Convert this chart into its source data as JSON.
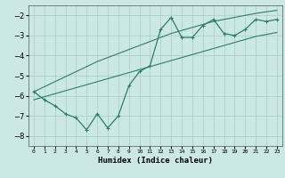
{
  "x": [
    0,
    1,
    2,
    3,
    4,
    5,
    6,
    7,
    8,
    9,
    10,
    11,
    12,
    13,
    14,
    15,
    16,
    17,
    18,
    19,
    20,
    21,
    22,
    23
  ],
  "y_main": [
    -5.8,
    -6.2,
    -6.5,
    -6.9,
    -7.1,
    -7.7,
    -6.9,
    -7.6,
    -7.0,
    -5.5,
    -4.8,
    -4.5,
    -2.7,
    -2.1,
    -3.1,
    -3.1,
    -2.5,
    -2.2,
    -2.9,
    -3.0,
    -2.7,
    -2.2,
    -2.3,
    -2.2
  ],
  "y_upper": [
    -5.8,
    -5.55,
    -5.3,
    -5.05,
    -4.8,
    -4.55,
    -4.3,
    -4.1,
    -3.9,
    -3.7,
    -3.5,
    -3.3,
    -3.1,
    -2.9,
    -2.75,
    -2.6,
    -2.45,
    -2.3,
    -2.2,
    -2.1,
    -2.0,
    -1.9,
    -1.82,
    -1.75
  ],
  "y_lower": [
    -6.2,
    -6.05,
    -5.9,
    -5.75,
    -5.6,
    -5.45,
    -5.3,
    -5.15,
    -5.0,
    -4.85,
    -4.7,
    -4.55,
    -4.4,
    -4.25,
    -4.1,
    -3.95,
    -3.8,
    -3.65,
    -3.5,
    -3.35,
    -3.2,
    -3.05,
    -2.95,
    -2.85
  ],
  "line_color": "#2e7d6e",
  "bg_color": "#cce8e4",
  "grid_color": "#a8ccc8",
  "xlabel": "Humidex (Indice chaleur)",
  "xlim": [
    -0.5,
    23.5
  ],
  "ylim": [
    -8.5,
    -1.5
  ],
  "yticks": [
    -8,
    -7,
    -6,
    -5,
    -4,
    -3,
    -2
  ],
  "xtick_labels": [
    "0",
    "1",
    "2",
    "3",
    "4",
    "5",
    "6",
    "7",
    "8",
    "9",
    "10",
    "11",
    "12",
    "13",
    "14",
    "15",
    "16",
    "17",
    "18",
    "19",
    "20",
    "21",
    "22",
    "23"
  ]
}
